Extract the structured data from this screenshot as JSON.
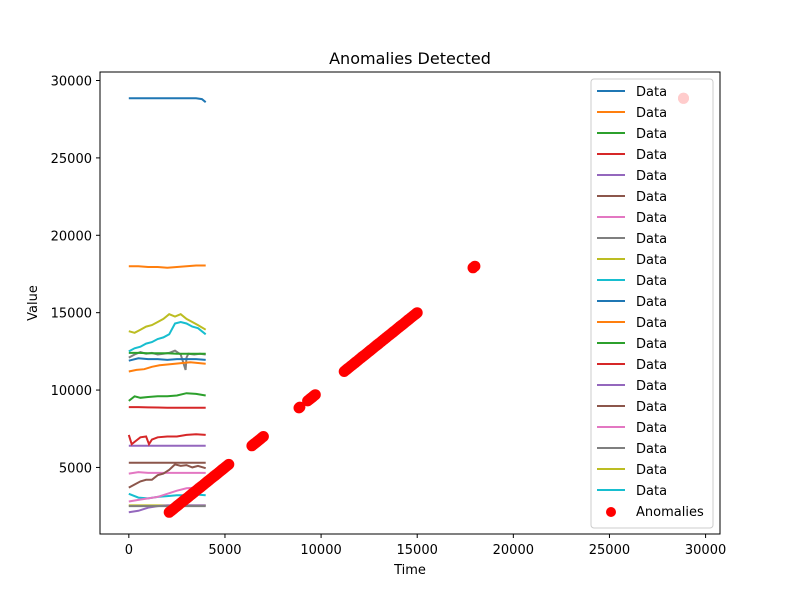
{
  "chart_data": {
    "type": "line",
    "title": "Anomalies Detected",
    "xlabel": "Time",
    "ylabel": "Value",
    "xlim": [
      -1500,
      30750
    ],
    "ylim": [
      700,
      30550
    ],
    "xticks": [
      0,
      5000,
      10000,
      15000,
      20000,
      25000,
      30000
    ],
    "yticks": [
      5000,
      10000,
      15000,
      20000,
      25000,
      30000
    ],
    "xtick_labels": [
      "0",
      "5000",
      "10000",
      "15000",
      "20000",
      "25000",
      "30000"
    ],
    "ytick_labels": [
      "5000",
      "10000",
      "15000",
      "20000",
      "25000",
      "30000"
    ],
    "grid": false,
    "legend_position": "upper right",
    "series": [
      {
        "name": "Data",
        "color": "#1f77b4",
        "x": [
          0,
          500,
          1000,
          1500,
          2000,
          2500,
          3000,
          3500,
          3800,
          4000
        ],
        "y": [
          28850,
          28850,
          28850,
          28850,
          28850,
          28850,
          28850,
          28850,
          28800,
          28600
        ]
      },
      {
        "name": "Data",
        "color": "#ff7f0e",
        "x": [
          0,
          500,
          1000,
          1500,
          2000,
          2500,
          3000,
          3500,
          4000
        ],
        "y": [
          18000,
          18000,
          17950,
          17950,
          17900,
          17950,
          18000,
          18050,
          18050
        ]
      },
      {
        "name": "Data",
        "color": "#2ca02c",
        "x": [
          0,
          300,
          600,
          1000,
          1500,
          2000,
          2500,
          3000,
          3500,
          4000
        ],
        "y": [
          9300,
          9600,
          9500,
          9550,
          9600,
          9600,
          9650,
          9800,
          9750,
          9650
        ]
      },
      {
        "name": "Data",
        "color": "#d62728",
        "x": [
          0,
          500,
          1000,
          1500,
          2000,
          2500,
          3000,
          3500,
          4000
        ],
        "y": [
          8900,
          8900,
          8880,
          8870,
          8860,
          8860,
          8860,
          8860,
          8860
        ]
      },
      {
        "name": "Data",
        "color": "#9467bd",
        "x": [
          0,
          500,
          1000,
          1500,
          2000,
          2500,
          3000,
          3500,
          4000
        ],
        "y": [
          6400,
          6400,
          6400,
          6400,
          6400,
          6400,
          6400,
          6400,
          6400
        ]
      },
      {
        "name": "Data",
        "color": "#8c564b",
        "x": [
          0,
          500,
          1000,
          1500,
          2000,
          2500,
          3000,
          3500,
          4000
        ],
        "y": [
          5300,
          5300,
          5300,
          5300,
          5300,
          5300,
          5300,
          5300,
          5300
        ]
      },
      {
        "name": "Data",
        "color": "#e377c2",
        "x": [
          0,
          500,
          1000,
          1500,
          2000,
          2500,
          3000,
          3500,
          4000
        ],
        "y": [
          4600,
          4700,
          4650,
          4650,
          4650,
          4650,
          4650,
          4650,
          4650
        ]
      },
      {
        "name": "Data",
        "color": "#7f7f7f",
        "x": [
          0,
          300,
          600,
          900,
          1200,
          1500,
          1800,
          2100,
          2400,
          2700,
          2950,
          3000,
          3100,
          3400,
          3700,
          4000
        ],
        "y": [
          12100,
          12300,
          12450,
          12350,
          12400,
          12300,
          12350,
          12400,
          12550,
          12300,
          11300,
          12100,
          12350,
          12300,
          12350,
          12300
        ]
      },
      {
        "name": "Data",
        "color": "#bcbd22",
        "x": [
          0,
          500,
          1000,
          1500,
          2000,
          2500,
          3000,
          3500,
          4000
        ],
        "y": [
          2550,
          2550,
          2550,
          2550,
          2550,
          2550,
          2550,
          2550,
          2550
        ]
      },
      {
        "name": "Data",
        "color": "#17becf",
        "x": [
          0,
          500,
          1000,
          1500,
          2000,
          2500,
          3000,
          3500,
          4000
        ],
        "y": [
          3300,
          3050,
          3000,
          3100,
          3150,
          3200,
          3200,
          3250,
          3200
        ]
      },
      {
        "name": "Data",
        "color": "#1f77b4",
        "x": [
          0,
          500,
          1000,
          1500,
          2000,
          2500,
          3000,
          3500,
          4000
        ],
        "y": [
          11900,
          12050,
          12000,
          12000,
          11950,
          12000,
          12000,
          12000,
          11950
        ]
      },
      {
        "name": "Data",
        "color": "#ff7f0e",
        "x": [
          0,
          400,
          800,
          1200,
          1600,
          2000,
          2400,
          2800,
          3200,
          3600,
          4000
        ],
        "y": [
          11200,
          11300,
          11350,
          11500,
          11600,
          11650,
          11700,
          11750,
          11800,
          11750,
          11700
        ]
      },
      {
        "name": "Data",
        "color": "#2ca02c",
        "x": [
          0,
          500,
          1000,
          1500,
          2000,
          2500,
          3000,
          3500,
          4000
        ],
        "y": [
          12400,
          12400,
          12380,
          12380,
          12380,
          12350,
          12350,
          12350,
          12350
        ]
      },
      {
        "name": "Data",
        "color": "#d62728",
        "x": [
          0,
          150,
          300,
          600,
          900,
          1050,
          1200,
          1500,
          2000,
          2500,
          3000,
          3500,
          4000
        ],
        "y": [
          7100,
          6500,
          6650,
          6950,
          7000,
          6500,
          6800,
          6950,
          7000,
          7000,
          7100,
          7150,
          7100
        ]
      },
      {
        "name": "Data",
        "color": "#9467bd",
        "x": [
          0,
          500,
          1000,
          1500,
          2000,
          2500,
          3000,
          3500,
          4000
        ],
        "y": [
          2100,
          2200,
          2400,
          2500,
          2550,
          2550,
          2550,
          2550,
          2550
        ]
      },
      {
        "name": "Data",
        "color": "#8c564b",
        "x": [
          0,
          300,
          600,
          900,
          1200,
          1500,
          1800,
          2100,
          2400,
          2700,
          3000,
          3300,
          3600,
          4000
        ],
        "y": [
          3700,
          3900,
          4100,
          4200,
          4200,
          4500,
          4600,
          4850,
          5200,
          5100,
          5150,
          5000,
          5100,
          4950
        ]
      },
      {
        "name": "Data",
        "color": "#e377c2",
        "x": [
          0,
          500,
          1000,
          1500,
          2000,
          2500,
          3000,
          3500,
          4000
        ],
        "y": [
          2800,
          2900,
          3000,
          3100,
          3300,
          3500,
          3650,
          3700,
          3700
        ]
      },
      {
        "name": "Data",
        "color": "#7f7f7f",
        "x": [
          0,
          500,
          1000,
          1500,
          2000,
          2500,
          3000,
          3500,
          4000
        ],
        "y": [
          2500,
          2500,
          2500,
          2500,
          2500,
          2500,
          2500,
          2500,
          2500
        ]
      },
      {
        "name": "Data",
        "color": "#bcbd22",
        "x": [
          0,
          300,
          600,
          900,
          1200,
          1500,
          1800,
          2100,
          2400,
          2700,
          3000,
          3300,
          3600,
          4000
        ],
        "y": [
          13800,
          13700,
          13900,
          14100,
          14200,
          14400,
          14600,
          14900,
          14750,
          14900,
          14600,
          14400,
          14200,
          13900
        ]
      },
      {
        "name": "Data",
        "color": "#17becf",
        "x": [
          0,
          300,
          600,
          900,
          1200,
          1500,
          1800,
          2100,
          2400,
          2700,
          3000,
          3300,
          3600,
          4000
        ],
        "y": [
          12500,
          12700,
          12800,
          13000,
          13100,
          13300,
          13400,
          13600,
          14300,
          14400,
          14300,
          14100,
          14000,
          13600
        ]
      }
    ],
    "anomalies": {
      "name": "Anomalies",
      "color": "#ff0000",
      "segments": [
        [
          2100,
          5200
        ],
        [
          6400,
          7000
        ],
        [
          8850,
          8900
        ],
        [
          9300,
          9700
        ],
        [
          11200,
          15000
        ],
        [
          17900,
          18000
        ],
        [
          28850,
          28850
        ]
      ]
    }
  }
}
